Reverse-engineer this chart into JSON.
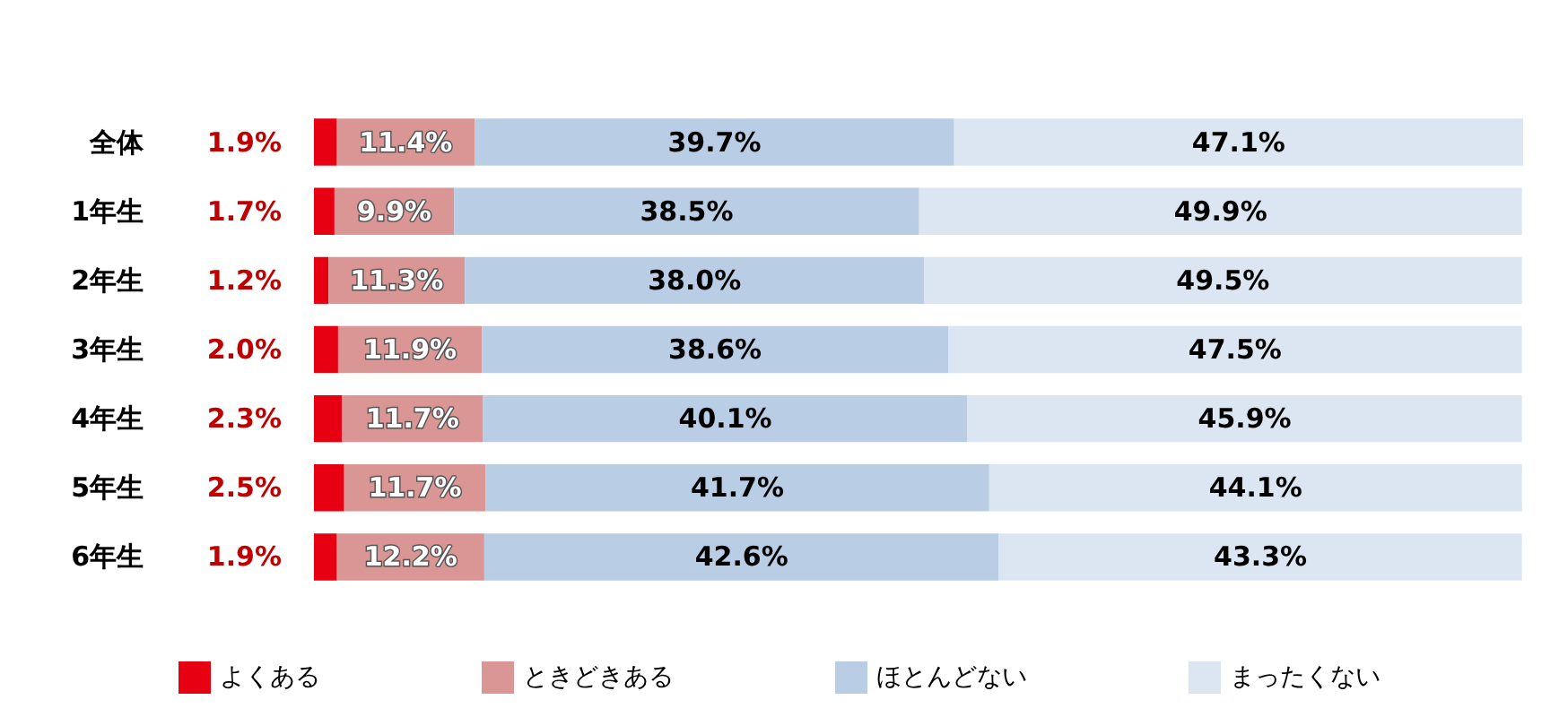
{
  "chart_data": {
    "type": "bar",
    "orientation": "horizontal",
    "stacked": true,
    "legend": "bottom",
    "categories": [
      "全体",
      "1年生",
      "2年生",
      "3年生",
      "4年生",
      "5年生",
      "6年生"
    ],
    "series": [
      {
        "name": "よくある",
        "color": "#e60012",
        "values": [
          1.9,
          1.7,
          1.2,
          2.0,
          2.3,
          2.5,
          1.9
        ],
        "value_labels": [
          "1.9%",
          "1.7%",
          "1.2%",
          "2.0%",
          "2.3%",
          "2.5%",
          "1.9%"
        ]
      },
      {
        "name": "ときどきある",
        "color": "#d99694",
        "values": [
          11.4,
          9.9,
          11.3,
          11.9,
          11.7,
          11.7,
          12.2
        ],
        "value_labels": [
          "11.4%",
          "9.9%",
          "11.3%",
          "11.9%",
          "11.7%",
          "11.7%",
          "12.2%"
        ]
      },
      {
        "name": "ほとんどない",
        "color": "#b9cde5",
        "values": [
          39.7,
          38.5,
          38.0,
          38.6,
          40.1,
          41.7,
          42.6
        ],
        "value_labels": [
          "39.7%",
          "38.5%",
          "38.0%",
          "38.6%",
          "40.1%",
          "41.7%",
          "42.6%"
        ]
      },
      {
        "name": "まったくない",
        "color": "#dce6f2",
        "values": [
          47.1,
          49.9,
          49.5,
          47.5,
          45.9,
          44.1,
          43.3
        ],
        "value_labels": [
          "47.1%",
          "49.9%",
          "49.5%",
          "47.5%",
          "45.9%",
          "44.1%",
          "43.3%"
        ]
      }
    ]
  }
}
